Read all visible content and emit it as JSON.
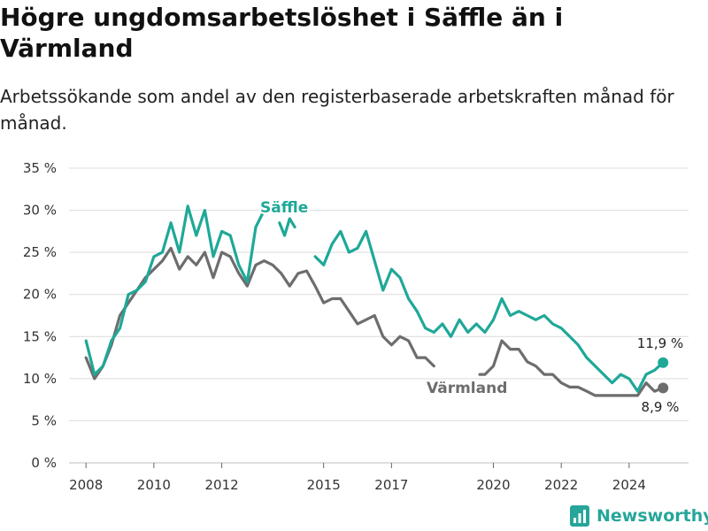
{
  "title": "Högre ungdomsarbetslöshet i Säffle än i Värmland",
  "subtitle": "Arbetssökande som andel av den registerbaserade arbetskraften månad för månad.",
  "brand": "Newsworthy",
  "colors": {
    "saffle": "#1fa898",
    "varmland": "#6d6d6d",
    "grid": "#dcdcdc",
    "brand": "#26a69a"
  },
  "chart_data": {
    "type": "line",
    "title": "Högre ungdomsarbetslöshet i Säffle än i Värmland",
    "subtitle": "Arbetssökande som andel av den registerbaserade arbetskraften månad för månad.",
    "xlabel": "",
    "ylabel": "",
    "y_ticks": [
      "0 %",
      "5 %",
      "10 %",
      "15 %",
      "20 %",
      "25 %",
      "30 %",
      "35 %"
    ],
    "ylim": [
      0,
      35
    ],
    "x_ticks": [
      "2008",
      "2010",
      "2012",
      "2015",
      "2017",
      "2020",
      "2022",
      "2024"
    ],
    "xlim": [
      2007.5,
      2025.75
    ],
    "grid": "horizontal",
    "legend": "direct labels",
    "series": [
      {
        "name": "Säffle",
        "key": "saffle",
        "end_label": "11,9 %",
        "points": [
          [
            2008.0,
            14.5
          ],
          [
            2008.25,
            10.5
          ],
          [
            2008.5,
            11.5
          ],
          [
            2008.75,
            14.5
          ],
          [
            2009.0,
            16.0
          ],
          [
            2009.25,
            20.0
          ],
          [
            2009.5,
            20.5
          ],
          [
            2009.75,
            21.5
          ],
          [
            2010.0,
            24.5
          ],
          [
            2010.25,
            25.0
          ],
          [
            2010.5,
            28.5
          ],
          [
            2010.75,
            25.0
          ],
          [
            2011.0,
            30.5
          ],
          [
            2011.25,
            27.0
          ],
          [
            2011.5,
            30.0
          ],
          [
            2011.75,
            24.5
          ],
          [
            2012.0,
            27.5
          ],
          [
            2012.25,
            27.0
          ],
          [
            2012.5,
            23.5
          ],
          [
            2012.75,
            21.5
          ],
          [
            2013.0,
            28.0
          ],
          [
            2013.25,
            30.0
          ],
          [
            2013.7,
            28.5
          ],
          [
            2013.85,
            27.0
          ],
          [
            2014.0,
            29.0
          ],
          [
            2014.15,
            28.0
          ],
          [
            2014.75,
            24.5
          ],
          [
            2015.0,
            23.5
          ],
          [
            2015.25,
            26.0
          ],
          [
            2015.5,
            27.5
          ],
          [
            2015.75,
            25.0
          ],
          [
            2016.0,
            25.5
          ],
          [
            2016.25,
            27.5
          ],
          [
            2016.5,
            24.0
          ],
          [
            2016.75,
            20.5
          ],
          [
            2017.0,
            23.0
          ],
          [
            2017.25,
            22.0
          ],
          [
            2017.5,
            19.5
          ],
          [
            2017.75,
            18.0
          ],
          [
            2018.0,
            16.0
          ],
          [
            2018.25,
            15.5
          ],
          [
            2018.5,
            16.5
          ],
          [
            2018.75,
            15.0
          ],
          [
            2019.0,
            17.0
          ],
          [
            2019.25,
            15.5
          ],
          [
            2019.5,
            16.5
          ],
          [
            2019.75,
            15.5
          ],
          [
            2020.0,
            17.0
          ],
          [
            2020.25,
            19.5
          ],
          [
            2020.5,
            17.5
          ],
          [
            2020.75,
            18.0
          ],
          [
            2021.0,
            17.5
          ],
          [
            2021.25,
            17.0
          ],
          [
            2021.5,
            17.5
          ],
          [
            2021.75,
            16.5
          ],
          [
            2022.0,
            16.0
          ],
          [
            2022.25,
            15.0
          ],
          [
            2022.5,
            14.0
          ],
          [
            2022.75,
            12.5
          ],
          [
            2023.0,
            11.5
          ],
          [
            2023.25,
            10.5
          ],
          [
            2023.5,
            9.5
          ],
          [
            2023.75,
            10.5
          ],
          [
            2024.0,
            10.0
          ],
          [
            2024.25,
            8.5
          ],
          [
            2024.5,
            10.5
          ],
          [
            2024.75,
            11.0
          ],
          [
            2025.0,
            11.9
          ]
        ]
      },
      {
        "name": "Värmland",
        "key": "varmland",
        "end_label": "8,9 %",
        "points": [
          [
            2008.0,
            12.5
          ],
          [
            2008.25,
            10.0
          ],
          [
            2008.5,
            11.5
          ],
          [
            2008.75,
            14.0
          ],
          [
            2009.0,
            17.5
          ],
          [
            2009.25,
            19.0
          ],
          [
            2009.5,
            20.5
          ],
          [
            2009.75,
            22.0
          ],
          [
            2010.0,
            23.0
          ],
          [
            2010.25,
            24.0
          ],
          [
            2010.5,
            25.5
          ],
          [
            2010.75,
            23.0
          ],
          [
            2011.0,
            24.5
          ],
          [
            2011.25,
            23.5
          ],
          [
            2011.5,
            25.0
          ],
          [
            2011.75,
            22.0
          ],
          [
            2012.0,
            25.0
          ],
          [
            2012.25,
            24.5
          ],
          [
            2012.5,
            22.5
          ],
          [
            2012.75,
            21.0
          ],
          [
            2013.0,
            23.5
          ],
          [
            2013.25,
            24.0
          ],
          [
            2013.5,
            23.5
          ],
          [
            2013.75,
            22.5
          ],
          [
            2014.0,
            21.0
          ],
          [
            2014.25,
            22.5
          ],
          [
            2014.5,
            22.8
          ],
          [
            2014.75,
            21.0
          ],
          [
            2015.0,
            19.0
          ],
          [
            2015.25,
            19.5
          ],
          [
            2015.5,
            19.5
          ],
          [
            2015.75,
            18.0
          ],
          [
            2016.0,
            16.5
          ],
          [
            2016.25,
            17.0
          ],
          [
            2016.5,
            17.5
          ],
          [
            2016.75,
            15.0
          ],
          [
            2017.0,
            14.0
          ],
          [
            2017.25,
            15.0
          ],
          [
            2017.5,
            14.5
          ],
          [
            2017.75,
            12.5
          ],
          [
            2018.0,
            12.5
          ],
          [
            2018.25,
            11.5
          ],
          [
            2019.6,
            10.5
          ],
          [
            2019.75,
            10.5
          ],
          [
            2020.0,
            11.5
          ],
          [
            2020.25,
            14.5
          ],
          [
            2020.5,
            13.5
          ],
          [
            2020.75,
            13.5
          ],
          [
            2021.0,
            12.0
          ],
          [
            2021.25,
            11.5
          ],
          [
            2021.5,
            10.5
          ],
          [
            2021.75,
            10.5
          ],
          [
            2022.0,
            9.5
          ],
          [
            2022.25,
            9.0
          ],
          [
            2022.5,
            9.0
          ],
          [
            2022.75,
            8.5
          ],
          [
            2023.0,
            8.0
          ],
          [
            2023.25,
            8.0
          ],
          [
            2023.5,
            8.0
          ],
          [
            2023.75,
            8.0
          ],
          [
            2024.0,
            8.0
          ],
          [
            2024.25,
            8.0
          ],
          [
            2024.5,
            9.5
          ],
          [
            2024.75,
            8.5
          ],
          [
            2025.0,
            8.9
          ]
        ]
      }
    ]
  }
}
